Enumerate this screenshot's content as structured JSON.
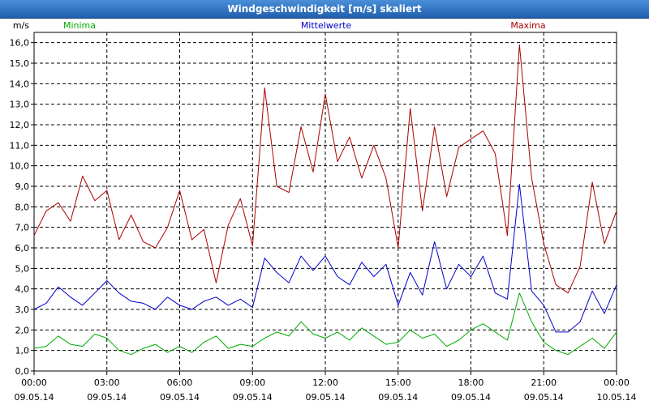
{
  "window": {
    "title": "Windgeschwindigkeit [m/s] skaliert"
  },
  "chart_data": {
    "type": "line",
    "ylabel": "m/s",
    "ylim": [
      0,
      16.5
    ],
    "y_ticks": [
      "0,0",
      "1,0",
      "2,0",
      "3,0",
      "4,0",
      "5,0",
      "6,0",
      "7,0",
      "8,0",
      "9,0",
      "10,0",
      "11,0",
      "12,0",
      "13,0",
      "14,0",
      "15,0",
      "16,0"
    ],
    "x_ticks": [
      {
        "time": "00:00",
        "date": "09.05.14"
      },
      {
        "time": "03:00",
        "date": "09.05.14"
      },
      {
        "time": "06:00",
        "date": "09.05.14"
      },
      {
        "time": "09:00",
        "date": "09.05.14"
      },
      {
        "time": "12:00",
        "date": "09.05.14"
      },
      {
        "time": "15:00",
        "date": "09.05.14"
      },
      {
        "time": "18:00",
        "date": "09.05.14"
      },
      {
        "time": "21:00",
        "date": "09.05.14"
      },
      {
        "time": "00:00",
        "date": "10.05.14"
      }
    ],
    "grid": true,
    "legend_position": "top",
    "x_hours": [
      0,
      0.5,
      1,
      1.5,
      2,
      2.5,
      3,
      3.5,
      4,
      4.5,
      5,
      5.5,
      6,
      6.5,
      7,
      7.5,
      8,
      8.5,
      9,
      9.5,
      10,
      10.5,
      11,
      11.5,
      12,
      12.5,
      13,
      13.5,
      14,
      14.5,
      15,
      15.5,
      16,
      16.5,
      17,
      17.5,
      18,
      18.5,
      19,
      19.5,
      20,
      20.5,
      21,
      21.5,
      22,
      22.5,
      23,
      23.5,
      24
    ],
    "series": [
      {
        "name": "Minima",
        "color": "#00aa00",
        "values": [
          1.1,
          1.2,
          1.7,
          1.3,
          1.2,
          1.8,
          1.6,
          1.0,
          0.8,
          1.1,
          1.3,
          0.9,
          1.2,
          0.9,
          1.4,
          1.7,
          1.1,
          1.3,
          1.2,
          1.6,
          1.9,
          1.7,
          2.4,
          1.8,
          1.6,
          1.9,
          1.5,
          2.1,
          1.7,
          1.3,
          1.4,
          2.0,
          1.6,
          1.8,
          1.2,
          1.5,
          2.0,
          2.3,
          1.9,
          1.5,
          3.8,
          2.4,
          1.4,
          1.0,
          0.8,
          1.2,
          1.6,
          1.1,
          1.9
        ]
      },
      {
        "name": "Mittelwerte",
        "color": "#0000cc",
        "values": [
          3.0,
          3.3,
          4.1,
          3.6,
          3.2,
          3.8,
          4.4,
          3.8,
          3.4,
          3.3,
          3.0,
          3.6,
          3.2,
          3.0,
          3.4,
          3.6,
          3.2,
          3.5,
          3.1,
          5.5,
          4.8,
          4.3,
          5.6,
          4.9,
          5.6,
          4.6,
          4.2,
          5.3,
          4.6,
          5.2,
          3.2,
          4.8,
          3.7,
          6.3,
          4.0,
          5.2,
          4.6,
          5.6,
          3.8,
          3.5,
          9.1,
          3.9,
          3.2,
          1.9,
          1.9,
          2.4,
          3.9,
          2.8,
          4.2
        ]
      },
      {
        "name": "Maxima",
        "color": "#aa0000",
        "values": [
          6.6,
          7.8,
          8.2,
          7.3,
          9.5,
          8.3,
          8.8,
          6.4,
          7.6,
          6.3,
          6.0,
          7.0,
          8.8,
          6.4,
          6.9,
          4.3,
          7.1,
          8.4,
          6.1,
          13.8,
          9.0,
          8.7,
          11.9,
          9.7,
          13.5,
          10.2,
          11.4,
          9.4,
          11.0,
          9.4,
          6.0,
          12.8,
          7.8,
          11.9,
          8.5,
          10.9,
          11.3,
          11.7,
          10.6,
          6.6,
          15.9,
          9.4,
          6.2,
          4.2,
          3.8,
          5.1,
          9.2,
          6.2,
          7.8
        ]
      }
    ]
  }
}
